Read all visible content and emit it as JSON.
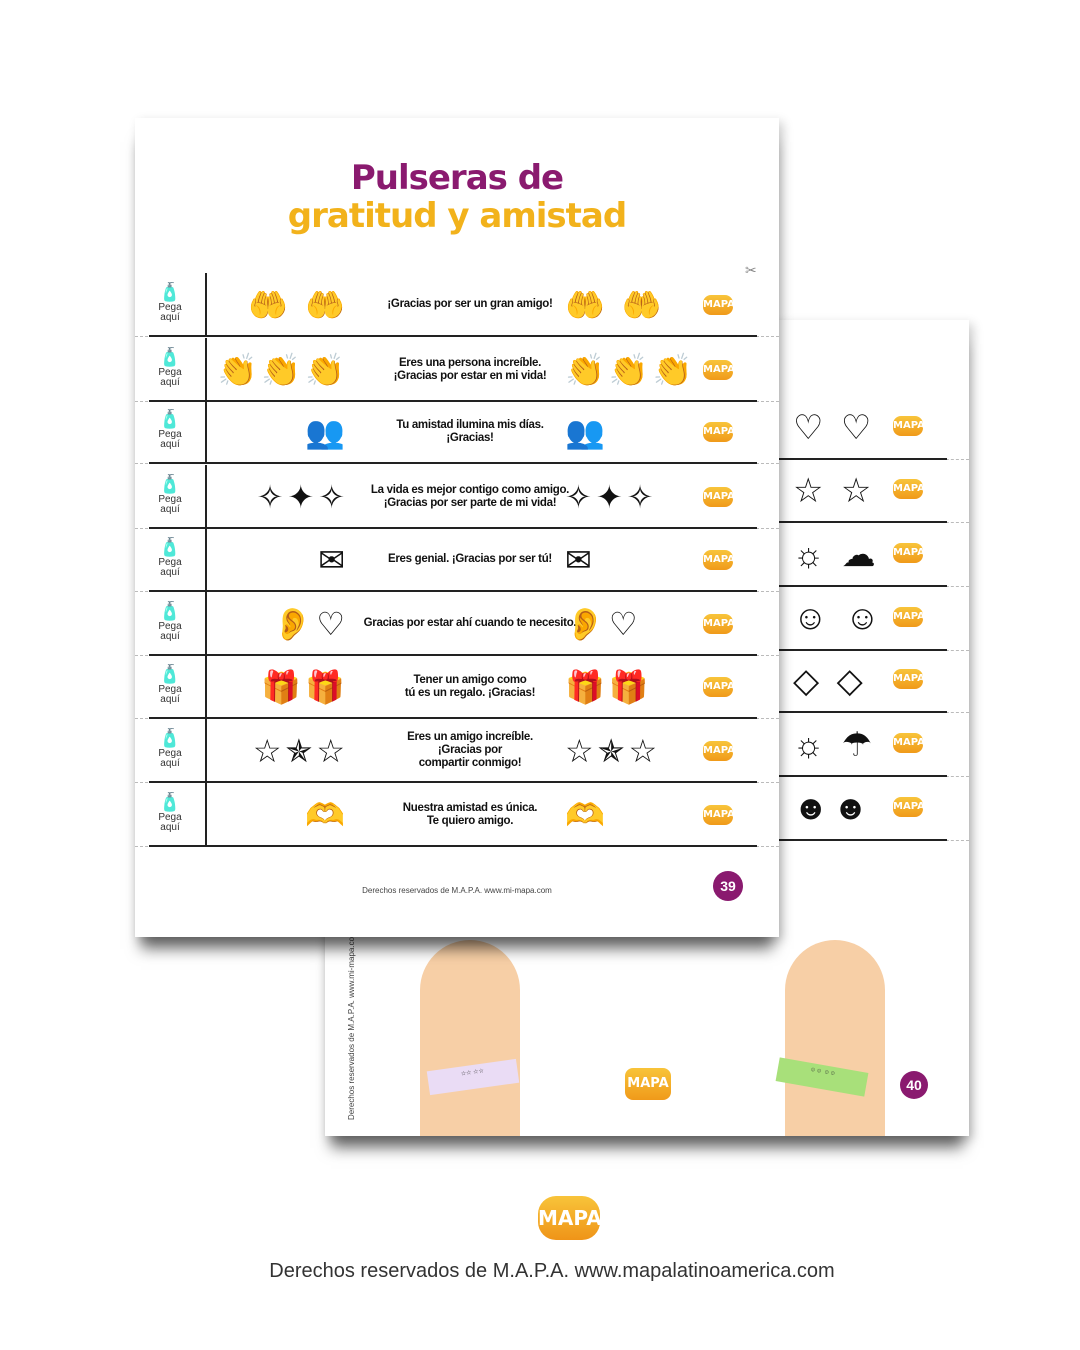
{
  "front_page": {
    "title_line1": "Pulseras de",
    "title_line2": "gratitud y amistad",
    "glue_label": "Pega\naquí",
    "logo_text": "MAPA",
    "rows": [
      {
        "message": "¡Gracias por ser un gran amigo!",
        "icons_left": "🤲 🤲",
        "icons_right": "🤲 🤲",
        "icon": "hands-heart-icon"
      },
      {
        "message": "Eres una persona increíble.\n¡Gracias por estar en mi vida!",
        "icons_left": "👏👏👏",
        "icons_right": "👏👏👏",
        "icon": "clapping-hands-icon"
      },
      {
        "message": "Tu amistad ilumina mis días.\n¡Gracias!",
        "icons_left": "👥",
        "icons_right": "👥",
        "icon": "friends-icon"
      },
      {
        "message": "La vida es mejor contigo como amigo.\n¡Gracias por ser parte de mi vida!",
        "icons_left": "✧✦✧",
        "icons_right": "✧✦✧",
        "icon": "sparkles-icon"
      },
      {
        "message": "Eres genial. ¡Gracias por ser tú!",
        "icons_left": "✉",
        "icons_right": "✉",
        "icon": "love-letter-icon"
      },
      {
        "message": "Gracias por estar ahí cuando te necesito.",
        "icons_left": "👂♡",
        "icons_right": "👂♡",
        "icon": "ear-heart-icon"
      },
      {
        "message": "Tener un amigo como\ntú es un regalo. ¡Gracias!",
        "icons_left": "🎁🎁",
        "icons_right": "🎁🎁",
        "icon": "gift-icon"
      },
      {
        "message": "Eres un amigo increíble.\n¡Gracias por\ncompartir conmigo!",
        "icons_left": "☆✯☆",
        "icons_right": "☆✯☆",
        "icon": "star-icon"
      },
      {
        "message": "Nuestra amistad es única.\nTe quiero amigo.",
        "icons_left": "🫶",
        "icons_right": "🫶",
        "icon": "heart-in-hand-icon"
      }
    ],
    "footer": "Derechos reservados de M.A.P.A.  www.mi-mapa.com",
    "page_number": "39"
  },
  "back_page": {
    "rows": [
      {
        "icons": "♡ ♡",
        "icon": "heart-icon"
      },
      {
        "icons": "☆ ☆",
        "icon": "star-icon"
      },
      {
        "icons": "☼ ☁",
        "icon": "sun-cloud-icon"
      },
      {
        "icons": "☺ ☺",
        "icon": "smiley-icon"
      },
      {
        "icons": "◇ ◇",
        "icon": "diamond-icon"
      },
      {
        "icons": "☼ ☂",
        "icon": "weather-icon"
      },
      {
        "icons": "☻☻",
        "icon": "peanut-characters-icon"
      }
    ],
    "vertical_footer": "Derechos reservados de M.A.P.A.  www.mi-mapa.com",
    "page_number": "40"
  },
  "colors": {
    "purple": "#8a1a6f",
    "yellow": "#f2b21b",
    "skin": "#f7cfa6",
    "band_lilac": "#eadcf5",
    "band_green": "#a8e07a"
  },
  "bottom": {
    "logo_text": "MAPA",
    "credit": "Derechos reservados de M.A.P.A.  www.mapalatinoamerica.com"
  }
}
